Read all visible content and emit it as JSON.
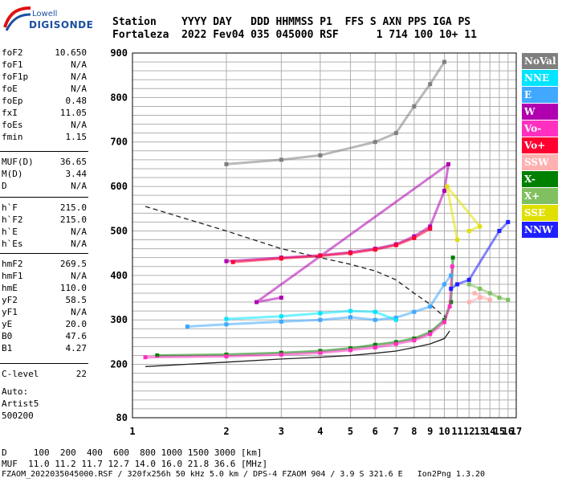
{
  "logo": {
    "top": "Lowell",
    "main": "DIGISONDE"
  },
  "header": {
    "line1": "Station    YYYY DAY   DDD HHMMSS P1  FFS S AXN PPS IGA PS",
    "line2": "Fortaleza  2022 Fev04 035 045000 RSF      1 714 100 10+ 11"
  },
  "params": {
    "group1": [
      {
        "k": "foF2",
        "v": "10.650"
      },
      {
        "k": "foF1",
        "v": "N/A"
      },
      {
        "k": "foF1p",
        "v": "N/A"
      },
      {
        "k": "foE",
        "v": "N/A"
      },
      {
        "k": "foEp",
        "v": "0.48"
      },
      {
        "k": "fxI",
        "v": "11.05"
      },
      {
        "k": "foEs",
        "v": "N/A"
      },
      {
        "k": "fmin",
        "v": "1.15"
      }
    ],
    "group2": [
      {
        "k": "MUF(D)",
        "v": "36.65"
      },
      {
        "k": "M(D)",
        "v": "3.44"
      },
      {
        "k": "D",
        "v": "N/A"
      }
    ],
    "group3": [
      {
        "k": "h`F",
        "v": "215.0"
      },
      {
        "k": "h`F2",
        "v": "215.0"
      },
      {
        "k": "h`E",
        "v": "N/A"
      },
      {
        "k": "h`Es",
        "v": "N/A"
      }
    ],
    "group4": [
      {
        "k": "hmF2",
        "v": "269.5"
      },
      {
        "k": "hmF1",
        "v": "N/A"
      },
      {
        "k": "hmE",
        "v": "110.0"
      },
      {
        "k": "yF2",
        "v": "58.5"
      },
      {
        "k": "yF1",
        "v": "N/A"
      },
      {
        "k": "yE",
        "v": "20.0"
      },
      {
        "k": "B0",
        "v": "47.6"
      },
      {
        "k": "B1",
        "v": "4.27"
      }
    ],
    "group5": [
      {
        "k": "C-level",
        "v": "22"
      }
    ]
  },
  "auto": {
    "line1": "Auto:",
    "line2": "Artist5",
    "line3": "500200"
  },
  "bottom": {
    "dline": "D     100  200  400  600  800 1000 1500 3000 [km]",
    "mufline": "MUF  11.0 11.2 11.7 12.7 14.0 16.0 21.8 36.6 [MHz]",
    "footer": "FZAOM_2022035045000.RSF / 320fx256h 50 kHz 5.0 km / DPS-4 FZAOM 904 / 3.9 S 321.6 E   Ion2Png 1.3.20"
  },
  "legend": [
    {
      "label": "NoVal",
      "color": "#7f7f7f"
    },
    {
      "label": "NNE",
      "color": "#00e5ff"
    },
    {
      "label": "E",
      "color": "#40a8ff"
    },
    {
      "label": "W",
      "color": "#b000b0"
    },
    {
      "label": "Vo-",
      "color": "#ff30c0"
    },
    {
      "label": "Vo+",
      "color": "#ff0030"
    },
    {
      "label": "SSW",
      "color": "#ffb0b0"
    },
    {
      "label": "X-",
      "color": "#008000"
    },
    {
      "label": "X+",
      "color": "#80c060"
    },
    {
      "label": "SSE",
      "color": "#e0e000"
    },
    {
      "label": "NNW",
      "color": "#2020ff"
    }
  ],
  "chart_data": {
    "type": "scatter",
    "x": [
      1,
      2,
      3,
      4,
      5,
      6,
      7,
      8,
      9,
      10,
      11,
      12,
      13,
      14,
      15,
      16,
      17
    ],
    "xlim": [
      1,
      17
    ],
    "ylim": [
      80,
      900
    ],
    "yticks": [
      80,
      200,
      300,
      400,
      500,
      600,
      700,
      800,
      900
    ],
    "grid": true,
    "log_x": true,
    "legend_placement": "right",
    "series": [
      {
        "name": "X-",
        "color": "#008000",
        "points": [
          [
            1.2,
            220
          ],
          [
            2,
            222
          ],
          [
            3,
            226
          ],
          [
            4,
            230
          ],
          [
            5,
            236
          ],
          [
            6,
            244
          ],
          [
            7,
            250
          ],
          [
            8,
            258
          ],
          [
            9,
            272
          ],
          [
            10,
            300
          ],
          [
            10.5,
            340
          ],
          [
            10.65,
            440
          ]
        ]
      },
      {
        "name": "Vo-",
        "color": "#ff30c0",
        "points": [
          [
            1.1,
            216
          ],
          [
            2,
            218
          ],
          [
            3,
            222
          ],
          [
            4,
            226
          ],
          [
            5,
            232
          ],
          [
            6,
            238
          ],
          [
            7,
            246
          ],
          [
            8,
            254
          ],
          [
            9,
            268
          ],
          [
            10,
            295
          ],
          [
            10.4,
            330
          ],
          [
            10.6,
            420
          ]
        ]
      },
      {
        "name": "E",
        "color": "#40a8ff",
        "points": [
          [
            1.5,
            285
          ],
          [
            2,
            290
          ],
          [
            3,
            296
          ],
          [
            4,
            300
          ],
          [
            5,
            306
          ],
          [
            6,
            300
          ],
          [
            7,
            305
          ],
          [
            8,
            318
          ],
          [
            9,
            330
          ],
          [
            10,
            380
          ],
          [
            10.5,
            400
          ]
        ]
      },
      {
        "name": "NNE",
        "color": "#00e5ff",
        "points": [
          [
            2,
            302
          ],
          [
            3,
            308
          ],
          [
            4,
            315
          ],
          [
            5,
            320
          ],
          [
            6,
            318
          ],
          [
            7,
            300
          ]
        ]
      },
      {
        "name": "W",
        "color": "#b000b0",
        "points": [
          [
            2,
            432
          ],
          [
            3,
            440
          ],
          [
            4,
            445
          ],
          [
            5,
            452
          ],
          [
            6,
            460
          ],
          [
            7,
            470
          ],
          [
            8,
            488
          ],
          [
            9,
            510
          ],
          [
            10,
            590
          ],
          [
            10.3,
            650
          ],
          [
            2.5,
            340
          ],
          [
            3,
            350
          ]
        ]
      },
      {
        "name": "Vo+",
        "color": "#ff0030",
        "points": [
          [
            2.1,
            430
          ],
          [
            3,
            438
          ],
          [
            4,
            444
          ],
          [
            5,
            450
          ],
          [
            6,
            458
          ],
          [
            7,
            468
          ],
          [
            8,
            484
          ],
          [
            9,
            505
          ]
        ]
      },
      {
        "name": "SSW",
        "color": "#ffb0b0",
        "points": [
          [
            12,
            340
          ],
          [
            13,
            350
          ],
          [
            14,
            345
          ],
          [
            12.5,
            360
          ]
        ]
      },
      {
        "name": "X+",
        "color": "#80c060",
        "points": [
          [
            12,
            380
          ],
          [
            13,
            370
          ],
          [
            14,
            360
          ],
          [
            15,
            350
          ],
          [
            16,
            345
          ]
        ]
      },
      {
        "name": "SSE",
        "color": "#e0e000",
        "points": [
          [
            12,
            500
          ],
          [
            13,
            510
          ],
          [
            10.2,
            600
          ],
          [
            11,
            480
          ]
        ]
      },
      {
        "name": "NNW",
        "color": "#2020ff",
        "points": [
          [
            10.5,
            370
          ],
          [
            11,
            380
          ],
          [
            12,
            390
          ],
          [
            15,
            500
          ],
          [
            16,
            520
          ]
        ]
      },
      {
        "name": "NoVal",
        "color": "#7f7f7f",
        "points": [
          [
            2,
            650
          ],
          [
            3,
            660
          ],
          [
            4,
            670
          ],
          [
            6,
            700
          ],
          [
            7,
            720
          ],
          [
            8,
            780
          ],
          [
            9,
            830
          ],
          [
            10,
            880
          ]
        ]
      }
    ],
    "curves": [
      {
        "name": "profile-solid",
        "style": "solid",
        "points": [
          [
            1.1,
            195
          ],
          [
            2,
            205
          ],
          [
            3,
            212
          ],
          [
            4,
            216
          ],
          [
            5,
            220
          ],
          [
            6,
            225
          ],
          [
            7,
            230
          ],
          [
            8,
            238
          ],
          [
            9,
            246
          ],
          [
            10,
            258
          ],
          [
            10.4,
            275
          ]
        ]
      },
      {
        "name": "profile-dashed",
        "style": "dashed",
        "points": [
          [
            1.1,
            555
          ],
          [
            2,
            500
          ],
          [
            3,
            460
          ],
          [
            4,
            440
          ],
          [
            5,
            425
          ],
          [
            6,
            410
          ],
          [
            7,
            390
          ],
          [
            8,
            360
          ],
          [
            9,
            335
          ],
          [
            9.7,
            315
          ],
          [
            10.2,
            305
          ]
        ]
      }
    ]
  }
}
